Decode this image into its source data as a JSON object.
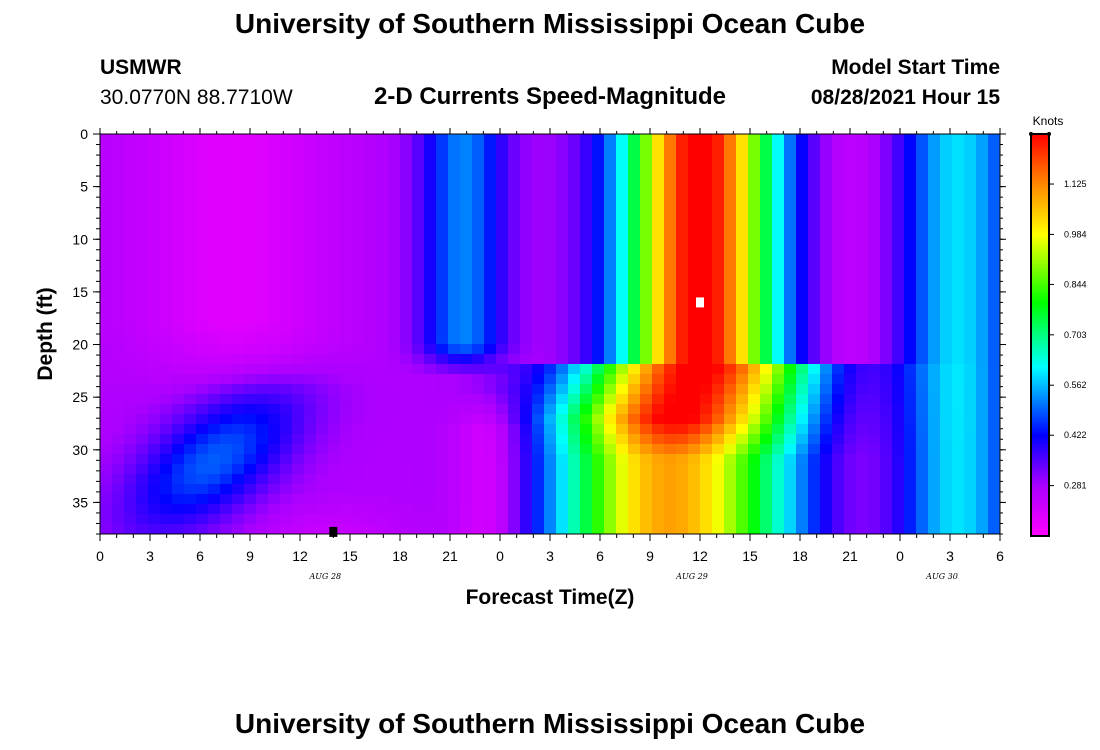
{
  "header": {
    "title_top": "University of Southern Mississippi Ocean Cube",
    "title_bottom": "University of Southern Mississippi Ocean Cube",
    "station_id": "USMWR",
    "station_coords": "30.0770N  88.7710W",
    "model_start_label": "Model Start Time",
    "model_start_value": "08/28/2021 Hour 15"
  },
  "chart_data": {
    "type": "heatmap",
    "title": "2-D Currents Speed-Magnitude",
    "xlabel": "Forecast Time(Z)",
    "ylabel": "Depth (ft)",
    "x_ticks": [
      "0",
      "3",
      "6",
      "9",
      "12",
      "15",
      "18",
      "21",
      "0",
      "3",
      "6",
      "9",
      "12",
      "15",
      "18",
      "21",
      "0",
      "3",
      "6"
    ],
    "x_range_hours": [
      0,
      54
    ],
    "y_ticks": [
      "0",
      "5",
      "10",
      "15",
      "20",
      "25",
      "30",
      "35"
    ],
    "y_range_ft": [
      0,
      38
    ],
    "date_labels": [
      {
        "text": "AUG  28",
        "hour": 14
      },
      {
        "text": "AUG  29",
        "hour": 36
      },
      {
        "text": "AUG  30",
        "hour": 51
      }
    ],
    "colorbar": {
      "unit": "Knots",
      "ticks": [
        "1.125",
        "0.984",
        "0.844",
        "0.703",
        "0.562",
        "0.422",
        "0.281"
      ],
      "tick_values": [
        1.125,
        0.984,
        0.844,
        0.703,
        0.562,
        0.422,
        0.281
      ],
      "range": [
        0.14,
        1.265
      ],
      "colors": [
        "#ff00ff",
        "#aa00ff",
        "#0000ff",
        "#00ffff",
        "#00ff00",
        "#ffff00",
        "#ff8800",
        "#ff0000"
      ]
    },
    "markers": [
      {
        "hour": 36,
        "depth": 16,
        "color": "#ffffff"
      },
      {
        "hour": 14,
        "depth": 37.8,
        "color": "#000000"
      }
    ]
  }
}
